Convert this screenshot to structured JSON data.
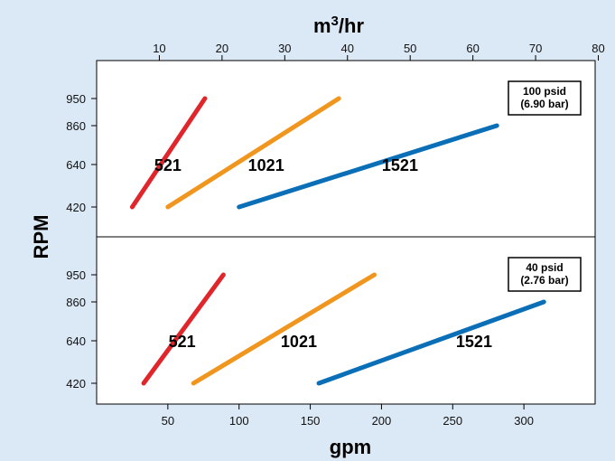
{
  "colors": {
    "background": "#dbe8f5",
    "plot_bg": "#ffffff",
    "s521": "#e0262b",
    "s1021": "#f0961e",
    "s1521": "#0a6fb7"
  },
  "chart_data": {
    "type": "line",
    "top_axis": {
      "label": "m",
      "label_sup": "3",
      "label_rest": "/hr",
      "ticks": [
        10,
        20,
        30,
        40,
        50,
        60,
        70,
        80
      ]
    },
    "bottom_axis": {
      "label": "gpm",
      "ticks": [
        50,
        100,
        150,
        200,
        250,
        300
      ],
      "range": [
        0,
        350
      ]
    },
    "y_axis": {
      "label": "RPM",
      "ticks": [
        420,
        640,
        860,
        950
      ]
    },
    "panels": [
      {
        "box_label_1": "100 psid",
        "box_label_2": "(6.90 bar)",
        "series": [
          {
            "name": "521",
            "color": "#e0262b",
            "points": [
              [
                25,
                420
              ],
              [
                76,
                950
              ]
            ],
            "label_at": [
              50,
              640
            ]
          },
          {
            "name": "1021",
            "color": "#f0961e",
            "points": [
              [
                50,
                420
              ],
              [
                170,
                950
              ]
            ],
            "label_at": [
              119,
              640
            ]
          },
          {
            "name": "1521",
            "color": "#0a6fb7",
            "points": [
              [
                100,
                420
              ],
              [
                281,
                860
              ]
            ],
            "label_at": [
              213,
              640
            ]
          }
        ]
      },
      {
        "box_label_1": "40 psid",
        "box_label_2": "(2.76 bar)",
        "series": [
          {
            "name": "521",
            "color": "#e0262b",
            "points": [
              [
                33,
                420
              ],
              [
                89,
                950
              ]
            ],
            "label_at": [
              60,
              640
            ]
          },
          {
            "name": "1021",
            "color": "#f0961e",
            "points": [
              [
                68,
                420
              ],
              [
                195,
                950
              ]
            ],
            "label_at": [
              142,
              640
            ]
          },
          {
            "name": "1521",
            "color": "#0a6fb7",
            "points": [
              [
                156,
                420
              ],
              [
                314,
                860
              ]
            ],
            "label_at": [
              265,
              640
            ]
          }
        ]
      }
    ]
  }
}
